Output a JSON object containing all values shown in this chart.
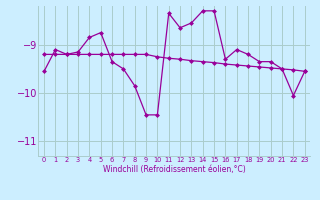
{
  "xlabel": "Windchill (Refroidissement éolien,°C)",
  "background_color": "#cceeff",
  "grid_color": "#aacccc",
  "line_color": "#990099",
  "hours": [
    0,
    1,
    2,
    3,
    4,
    5,
    6,
    7,
    8,
    9,
    10,
    11,
    12,
    13,
    14,
    15,
    16,
    17,
    18,
    19,
    20,
    21,
    22,
    23
  ],
  "jagged": [
    -9.55,
    -9.1,
    -9.2,
    -9.15,
    -8.85,
    -8.75,
    -9.35,
    -9.5,
    -9.85,
    -10.45,
    -10.45,
    -8.35,
    -8.65,
    -8.55,
    -8.3,
    -8.3,
    -9.3,
    -9.1,
    -9.2,
    -9.35,
    -9.35,
    -9.5,
    -10.05,
    -9.55
  ],
  "smooth": [
    -9.2,
    -9.2,
    -9.2,
    -9.2,
    -9.2,
    -9.2,
    -9.2,
    -9.2,
    -9.2,
    -9.2,
    -9.25,
    -9.28,
    -9.3,
    -9.33,
    -9.35,
    -9.37,
    -9.4,
    -9.42,
    -9.44,
    -9.46,
    -9.48,
    -9.5,
    -9.52,
    -9.55
  ],
  "ylim": [
    -11.3,
    -8.2
  ],
  "yticks": [
    -11,
    -10,
    -9
  ],
  "xlim": [
    -0.5,
    23.5
  ]
}
